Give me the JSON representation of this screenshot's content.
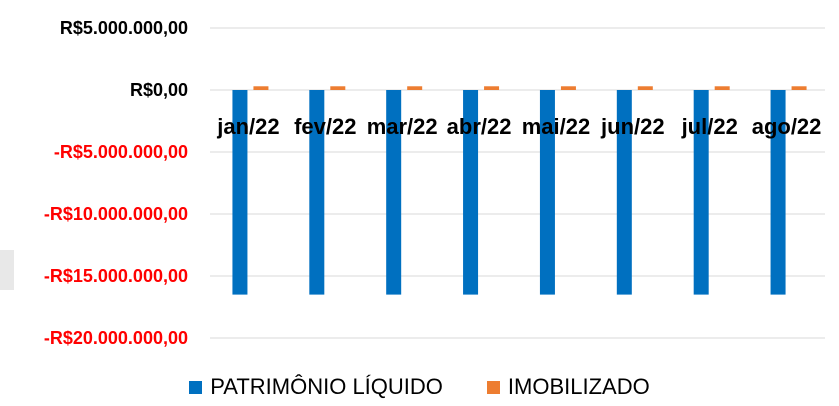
{
  "chart_data": {
    "type": "bar",
    "categories": [
      "jan/22",
      "fev/22",
      "mar/22",
      "abr/22",
      "mai/22",
      "jun/22",
      "jul/22",
      "ago/22"
    ],
    "series": [
      {
        "name": "PATRIMÔNIO LÍQUIDO",
        "color": "#0070c0",
        "values": [
          -16500000,
          -16500000,
          -16500000,
          -16500000,
          -16500000,
          -16500000,
          -16500000,
          -16500000
        ]
      },
      {
        "name": "IMOBILIZADO",
        "color": "#ed7d31",
        "values": [
          300000,
          300000,
          300000,
          300000,
          300000,
          300000,
          300000,
          300000
        ]
      }
    ],
    "y_ticks": [
      {
        "value": 5000000,
        "label": "R$5.000.000,00",
        "color": "#000000"
      },
      {
        "value": 0,
        "label": "R$0,00",
        "color": "#000000"
      },
      {
        "value": -5000000,
        "label": "-R$5.000.000,00",
        "color": "#ff0000"
      },
      {
        "value": -10000000,
        "label": "-R$10.000.000,00",
        "color": "#ff0000"
      },
      {
        "value": -15000000,
        "label": "-R$15.000.000,00",
        "color": "#ff0000"
      },
      {
        "value": -20000000,
        "label": "-R$20.000.000,00",
        "color": "#ff0000"
      }
    ],
    "ylim": [
      -20000000,
      5000000
    ],
    "grid": true,
    "legend_position": "bottom",
    "title": "",
    "xlabel": "",
    "ylabel": ""
  }
}
